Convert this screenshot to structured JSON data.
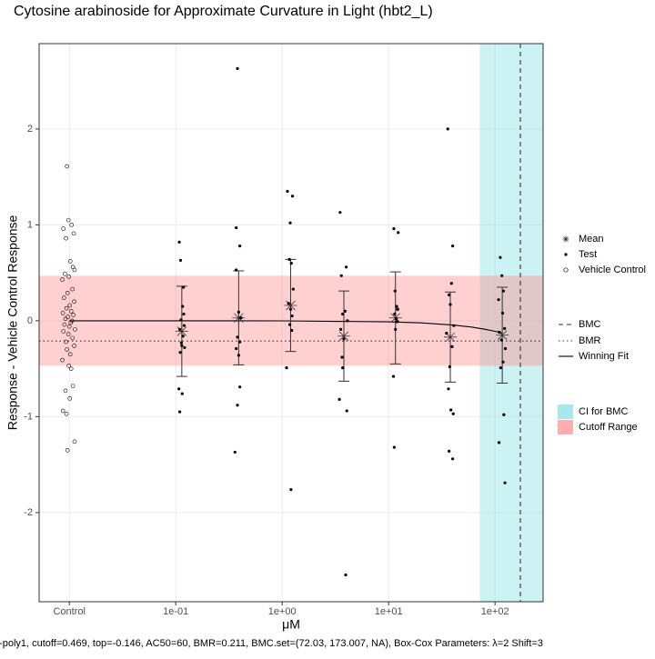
{
  "chart_data": {
    "type": "scatter",
    "title": "Cytosine arabinoside for Approximate Curvature in Light (hbt2_L)",
    "x_label": "μM",
    "y_label": "Response - Vehicle Control Response",
    "caption": "-poly1, cutoff=0.469, top=-0.146, AC50=60, BMR=0.211, BMC.set=(72.03, 173.007, NA), Box-Cox Parameters: λ=2 Shift=3",
    "log_x": true,
    "grid": true,
    "xlim": [
      0.0052,
      283
    ],
    "xticks": [
      {
        "value": 0.01,
        "label": "Control"
      },
      {
        "value": 0.1,
        "label": "1e-01"
      },
      {
        "value": 1,
        "label": "1e+00"
      },
      {
        "value": 10,
        "label": "1e+01"
      },
      {
        "value": 100,
        "label": "1e+02"
      }
    ],
    "ylim": [
      -2.93,
      2.89
    ],
    "yticks": [
      -2,
      -1,
      0,
      1,
      2
    ],
    "series": [
      {
        "name": "Mean",
        "marker": "asterisk",
        "color": "#333333",
        "x": [
          0.114,
          0.39,
          1.2,
          3.8,
          11.6,
          38,
          117
        ],
        "values": [
          -0.11,
          0.03,
          0.16,
          -0.16,
          0.03,
          -0.17,
          -0.15
        ],
        "errors": [
          0.47,
          0.49,
          0.48,
          0.47,
          0.48,
          0.47,
          0.5
        ]
      },
      {
        "name": "Test",
        "marker": "dot",
        "color": "#000000",
        "x": [
          0.108,
          0.111,
          0.118,
          0.116,
          0.112,
          0.12,
          0.109,
          0.117,
          0.113,
          0.121,
          0.11,
          0.107,
          0.115,
          0.109,
          0.119,
          0.114,
          0.38,
          0.37,
          0.4,
          0.37,
          0.39,
          0.41,
          0.38,
          0.4,
          0.37,
          0.39,
          0.4,
          0.38,
          0.36,
          1.12,
          1.25,
          1.19,
          1.17,
          1.22,
          1.27,
          1.15,
          1.2,
          1.24,
          1.18,
          1.1,
          1.21,
          1.23,
          3.5,
          4.0,
          3.6,
          3.9,
          3.7,
          4.1,
          3.55,
          3.8,
          3.65,
          3.7,
          3.45,
          4.05,
          3.95,
          11.2,
          12.3,
          11.5,
          11.9,
          12.1,
          11.4,
          11.8,
          12.0,
          11.6,
          11.1,
          11.3,
          12.2,
          36,
          40,
          39,
          37,
          38,
          41,
          35,
          39.5,
          37.5,
          36.5,
          38.5,
          40.5,
          37,
          40,
          112,
          116,
          120,
          108,
          118,
          123,
          110,
          115,
          125,
          119,
          113,
          121,
          109,
          124
        ],
        "values": [
          0.82,
          0.63,
          0.35,
          0.15,
          0.01,
          -0.05,
          -0.09,
          -0.16,
          -0.23,
          -0.28,
          -0.33,
          -0.71,
          -0.76,
          -0.95,
          0.07,
          -0.26,
          2.63,
          0.97,
          0.78,
          0.53,
          0.09,
          0.03,
          -0.17,
          -0.22,
          -0.29,
          -0.36,
          -0.69,
          -0.88,
          -1.37,
          1.35,
          1.3,
          1.02,
          0.64,
          0.6,
          0.33,
          0.18,
          0.12,
          0.05,
          -0.04,
          -0.49,
          -1.76,
          -0.1,
          1.13,
          0.56,
          0.47,
          0.1,
          0.07,
          0.0,
          -0.09,
          -0.19,
          -0.38,
          -0.49,
          -0.82,
          -0.94,
          -2.65,
          0.96,
          0.92,
          0.31,
          0.15,
          0.12,
          0.07,
          0.02,
          -0.01,
          -0.09,
          -0.58,
          -1.32,
          0.12,
          2.0,
          0.78,
          0.39,
          0.27,
          0.17,
          -0.05,
          -0.13,
          -0.27,
          -0.48,
          -0.71,
          -0.93,
          -0.97,
          -1.36,
          -1.44,
          0.66,
          0.47,
          0.31,
          0.22,
          0.08,
          -0.08,
          -0.12,
          -0.2,
          -0.29,
          -0.43,
          -0.49,
          -0.98,
          -1.27,
          -1.69
        ]
      },
      {
        "name": "Vehicle Control",
        "marker": "open-circle",
        "color": "#000000",
        "x": [
          0.0095,
          0.0098,
          0.0105,
          0.0088,
          0.011,
          0.0093,
          0.0102,
          0.0108,
          0.0112,
          0.0091,
          0.0099,
          0.0086,
          0.0107,
          0.0096,
          0.0089,
          0.0111,
          0.0101,
          0.0094,
          0.0104,
          0.0087,
          0.0109,
          0.0097,
          0.0092,
          0.0106,
          0.0103,
          0.009,
          0.01,
          0.0113,
          0.0088,
          0.0098,
          0.0107,
          0.0093,
          0.0111,
          0.0095,
          0.0102,
          0.0086,
          0.0099,
          0.0104,
          0.0108,
          0.0092,
          0.0101,
          0.0087,
          0.0094,
          0.0112,
          0.0096
        ],
        "values": [
          1.61,
          1.05,
          1.0,
          0.96,
          0.91,
          0.86,
          0.62,
          0.56,
          0.53,
          0.49,
          0.46,
          0.43,
          0.33,
          0.29,
          0.24,
          0.2,
          0.16,
          0.13,
          0.1,
          0.08,
          0.06,
          0.04,
          0.02,
          0.0,
          -0.02,
          -0.04,
          -0.06,
          -0.09,
          -0.11,
          -0.14,
          -0.18,
          -0.22,
          -0.26,
          -0.3,
          -0.35,
          -0.41,
          -0.47,
          -0.5,
          -0.68,
          -0.73,
          -0.81,
          -0.94,
          -0.97,
          -1.26,
          -1.35
        ]
      }
    ],
    "lines": [
      {
        "name": "BMC",
        "style": "dashed",
        "color": "#333333",
        "x": 173.007
      },
      {
        "name": "BMR",
        "style": "dotted",
        "color": "#333333",
        "y": -0.211
      },
      {
        "name": "Winning Fit",
        "style": "solid",
        "color": "#000000",
        "x": [
          0.01,
          0.1,
          1,
          10,
          20,
          40,
          60,
          80,
          100,
          117
        ],
        "values": [
          0,
          0,
          -0.001,
          -0.011,
          -0.022,
          -0.044,
          -0.066,
          -0.088,
          -0.11,
          -0.129
        ]
      }
    ],
    "bands": [
      {
        "name": "CI for BMC",
        "color": "#7fdfe2",
        "x_from": 72.03
      },
      {
        "name": "Cutoff Range",
        "color": "#ff8a8a",
        "y_range": [
          -0.469,
          0.469
        ]
      }
    ]
  }
}
